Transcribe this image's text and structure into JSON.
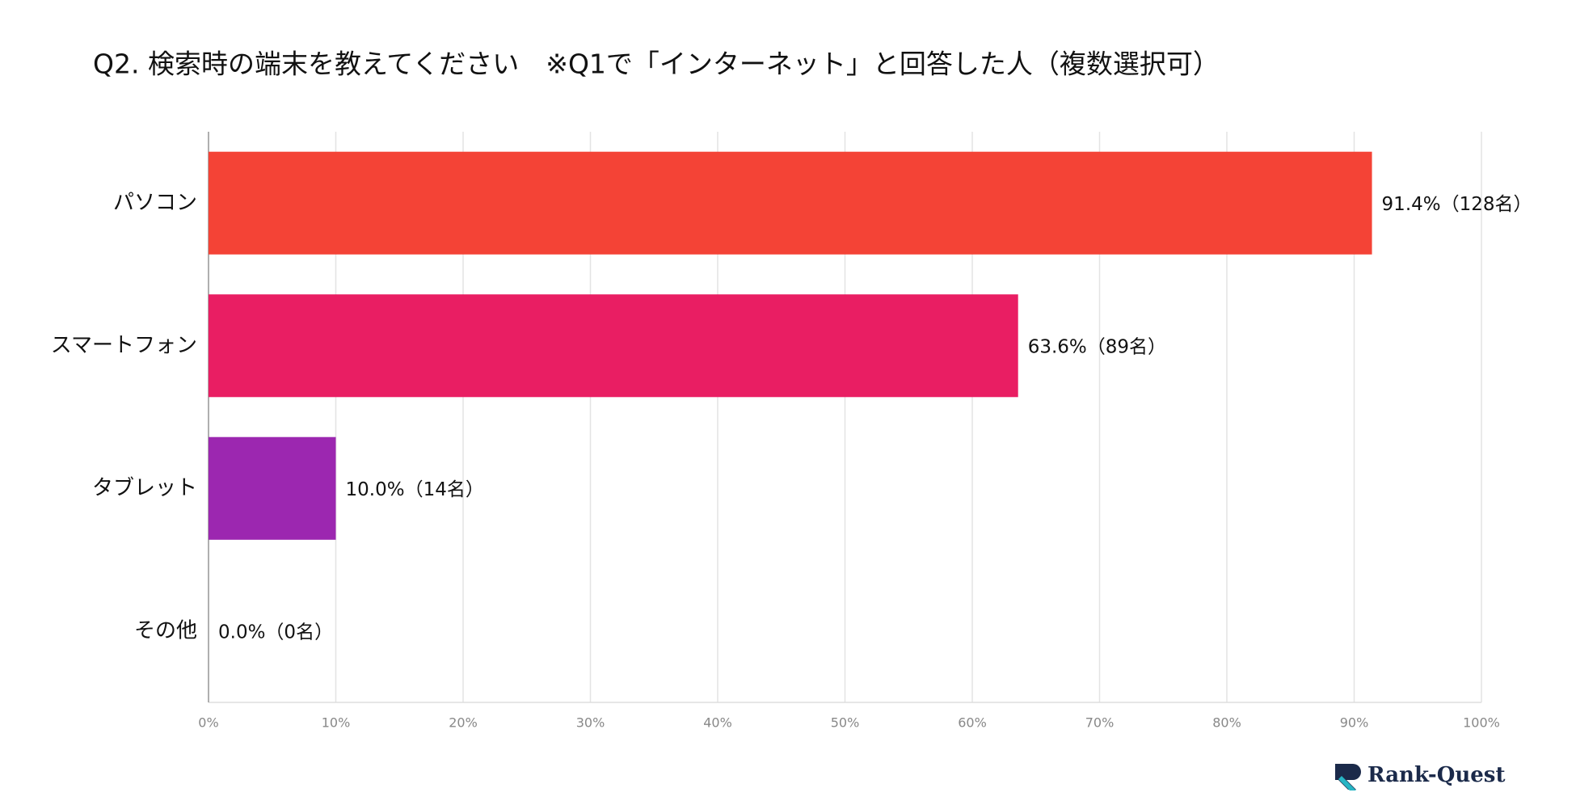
{
  "chart_data": {
    "type": "bar",
    "orientation": "horizontal",
    "title": "Q2. 検索時の端末を教えてください　※Q1で「インターネット」と回答した人（複数選択可）",
    "categories": [
      "パソコン",
      "スマートフォン",
      "タブレット",
      "その他"
    ],
    "values": [
      91.4,
      63.6,
      10.0,
      0.0
    ],
    "value_labels": [
      "91.4%（128名）",
      "63.6%（89名）",
      "10.0%（14名）",
      "0.0%（0名）"
    ],
    "colors": [
      "#f44336",
      "#e91e63",
      "#9c27b0",
      "#673ab7"
    ],
    "xlim": [
      0,
      100
    ],
    "xticks": [
      {
        "value": 0,
        "label": "0%"
      },
      {
        "value": 10,
        "label": "10%"
      },
      {
        "value": 20,
        "label": "20%"
      },
      {
        "value": 30,
        "label": "30%"
      },
      {
        "value": 40,
        "label": "40%"
      },
      {
        "value": 50,
        "label": "50%"
      },
      {
        "value": 60,
        "label": "60%"
      },
      {
        "value": 70,
        "label": "70%"
      },
      {
        "value": 80,
        "label": "80%"
      },
      {
        "value": 90,
        "label": "90%"
      },
      {
        "value": 100,
        "label": "100%"
      }
    ],
    "grid": true
  },
  "logo": "Rank-Quest"
}
